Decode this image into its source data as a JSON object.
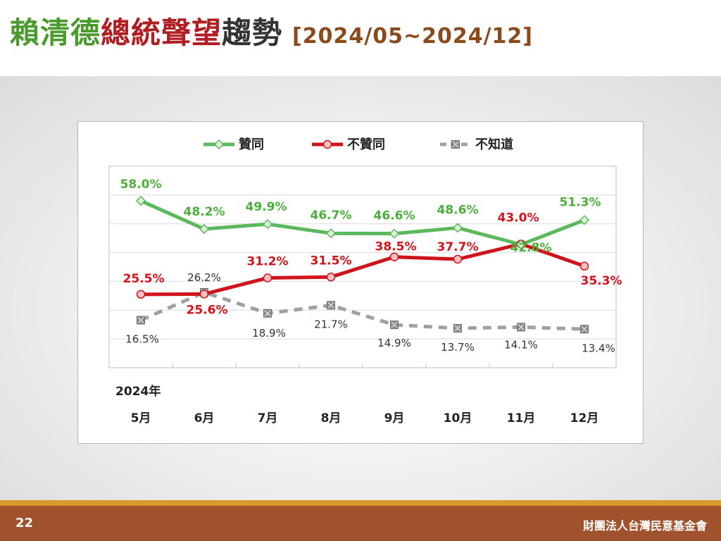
{
  "slide": {
    "title_part1": "賴清德",
    "title_part2": "總統聲望",
    "title_part3": "趨勢",
    "title_range": "[2024/05~2024/12]",
    "page_number": "22",
    "organization": "財團法人台灣民意基金會"
  },
  "colors": {
    "approve": "#5cb85c",
    "disapprove": "#d0141c",
    "unknown": "#a0a0a0",
    "title_green": "#4a9a2e",
    "title_red": "#b01e23",
    "footer": "#a0522d",
    "footer_stripe": "#d89a2c"
  },
  "chart_data": {
    "type": "line",
    "year_label": "2024年",
    "categories": [
      "5月",
      "6月",
      "7月",
      "8月",
      "9月",
      "10月",
      "11月",
      "12月"
    ],
    "ylim": [
      0,
      70
    ],
    "grid": true,
    "legend_position": "top",
    "series": [
      {
        "name": "贊同",
        "key": "approve",
        "values": [
          58.0,
          48.2,
          49.9,
          46.7,
          46.6,
          48.6,
          42.8,
          51.3
        ],
        "labels": [
          "58.0%",
          "48.2%",
          "49.9%",
          "46.7%",
          "46.6%",
          "48.6%",
          "42.8%",
          "51.3%"
        ]
      },
      {
        "name": "不贊同",
        "key": "disapprove",
        "values": [
          25.5,
          25.6,
          31.2,
          31.5,
          38.5,
          37.7,
          43.0,
          35.3
        ],
        "labels": [
          "25.5%",
          "25.6%",
          "31.2%",
          "31.5%",
          "38.5%",
          "37.7%",
          "43.0%",
          "35.3%"
        ]
      },
      {
        "name": "不知道",
        "key": "unknown",
        "values": [
          16.5,
          26.2,
          18.9,
          21.7,
          14.9,
          13.7,
          14.1,
          13.4
        ],
        "labels": [
          "16.5%",
          "26.2%",
          "18.9%",
          "21.7%",
          "14.9%",
          "13.7%",
          "14.1%",
          "13.4%"
        ]
      }
    ]
  }
}
